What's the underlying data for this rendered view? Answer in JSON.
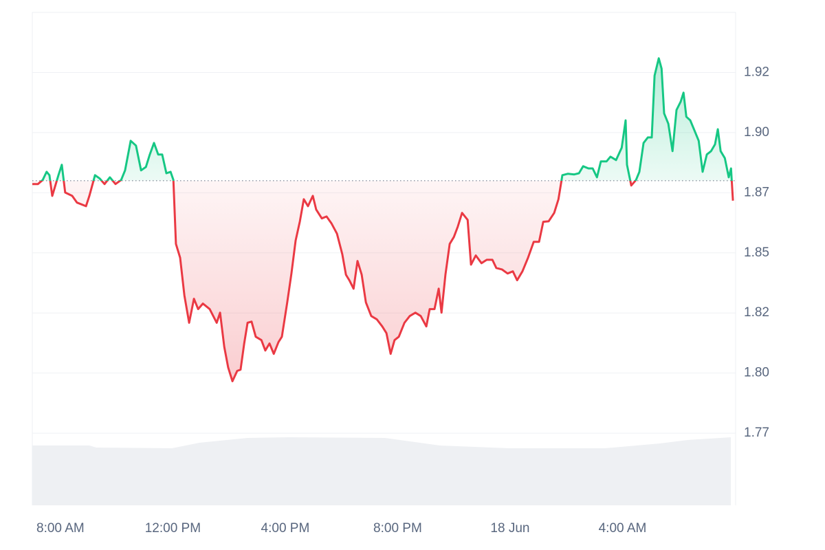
{
  "chart_data": {
    "type": "line",
    "up_color": "#16c784",
    "down_color": "#ea3943",
    "baseline": 1.88,
    "xlim": [
      7,
      32
    ],
    "xticks": [
      {
        "value": 8,
        "label": "8:00 AM"
      },
      {
        "value": 12,
        "label": "12:00 PM"
      },
      {
        "value": 16,
        "label": "4:00 PM"
      },
      {
        "value": 20,
        "label": "8:00 PM"
      },
      {
        "value": 24,
        "label": "18 Jun"
      },
      {
        "value": 28,
        "label": "4:00 AM"
      }
    ],
    "ylim": [
      1.745,
      1.95
    ],
    "yticks": [
      {
        "value": 1.925,
        "label": "1.92"
      },
      {
        "value": 1.9,
        "label": "1.90"
      },
      {
        "value": 1.875,
        "label": "1.87"
      },
      {
        "value": 1.85,
        "label": "1.85"
      },
      {
        "value": 1.825,
        "label": "1.82"
      },
      {
        "value": 1.8,
        "label": "1.80"
      },
      {
        "value": 1.775,
        "label": "1.77"
      }
    ],
    "grid": true,
    "x": [
      7.0,
      7.2,
      7.37,
      7.51,
      7.61,
      7.71,
      7.93,
      8.05,
      8.17,
      8.42,
      8.59,
      8.91,
      9.03,
      9.23,
      9.4,
      9.57,
      9.76,
      9.96,
      10.16,
      10.3,
      10.5,
      10.69,
      10.87,
      11.04,
      11.18,
      11.33,
      11.48,
      11.62,
      11.77,
      11.92,
      12.02,
      12.11,
      12.26,
      12.41,
      12.58,
      12.75,
      12.9,
      13.07,
      13.31,
      13.56,
      13.68,
      13.83,
      13.97,
      14.12,
      14.29,
      14.41,
      14.54,
      14.66,
      14.8,
      14.95,
      15.15,
      15.29,
      15.44,
      15.59,
      15.76,
      15.88,
      16.07,
      16.22,
      16.37,
      16.52,
      16.66,
      16.81,
      16.98,
      17.1,
      17.3,
      17.47,
      17.64,
      17.84,
      18.03,
      18.16,
      18.28,
      18.43,
      18.57,
      18.72,
      18.87,
      19.06,
      19.26,
      19.45,
      19.6,
      19.75,
      19.89,
      20.04,
      20.24,
      20.43,
      20.63,
      20.82,
      21.02,
      21.14,
      21.31,
      21.46,
      21.56,
      21.7,
      21.85,
      22.0,
      22.14,
      22.29,
      22.49,
      22.61,
      22.78,
      22.98,
      23.17,
      23.37,
      23.51,
      23.71,
      23.91,
      24.1,
      24.25,
      24.44,
      24.64,
      24.84,
      25.03,
      25.18,
      25.37,
      25.57,
      25.72,
      25.86,
      26.06,
      26.28,
      26.45,
      26.6,
      26.79,
      26.94,
      27.09,
      27.23,
      27.43,
      27.57,
      27.77,
      27.97,
      28.11,
      28.16,
      28.31,
      28.48,
      28.6,
      28.75,
      28.9,
      29.04,
      29.14,
      29.29,
      29.39,
      29.48,
      29.63,
      29.78,
      29.92,
      30.07,
      30.17,
      30.27,
      30.41,
      30.56,
      30.71,
      30.85,
      31.0,
      31.15,
      31.29,
      31.39,
      31.49,
      31.64,
      31.78,
      31.86,
      31.93
    ],
    "values": [
      1.8786,
      1.8786,
      1.8803,
      1.8837,
      1.8823,
      1.8737,
      1.8823,
      1.8866,
      1.8751,
      1.8737,
      1.8709,
      1.8694,
      1.8737,
      1.8823,
      1.8809,
      1.8786,
      1.8814,
      1.8786,
      1.8803,
      1.8843,
      1.8966,
      1.8946,
      1.8843,
      1.8857,
      1.8909,
      1.8957,
      1.8909,
      1.8909,
      1.8831,
      1.8837,
      1.8803,
      1.8537,
      1.848,
      1.8323,
      1.8209,
      1.8309,
      1.8266,
      1.8289,
      1.8266,
      1.8209,
      1.8251,
      1.8109,
      1.8023,
      1.7966,
      1.8009,
      1.8014,
      1.8123,
      1.8209,
      1.8214,
      1.8151,
      1.8137,
      1.8094,
      1.8123,
      1.808,
      1.8129,
      1.8151,
      1.8294,
      1.8414,
      1.8551,
      1.8631,
      1.8723,
      1.8694,
      1.8737,
      1.868,
      1.8643,
      1.8651,
      1.8623,
      1.858,
      1.8494,
      1.8409,
      1.8386,
      1.8351,
      1.8466,
      1.8409,
      1.8294,
      1.8237,
      1.8223,
      1.8194,
      1.8166,
      1.808,
      1.8137,
      1.8151,
      1.8209,
      1.8237,
      1.8251,
      1.8237,
      1.8194,
      1.8266,
      1.8266,
      1.8351,
      1.8251,
      1.8409,
      1.8537,
      1.8566,
      1.8609,
      1.8666,
      1.8637,
      1.8451,
      1.8489,
      1.8457,
      1.8471,
      1.8471,
      1.8437,
      1.8431,
      1.8414,
      1.8423,
      1.8386,
      1.8423,
      1.848,
      1.8546,
      1.8546,
      1.8629,
      1.8631,
      1.8666,
      1.8723,
      1.8823,
      1.8829,
      1.8826,
      1.8831,
      1.886,
      1.8851,
      1.8851,
      1.8814,
      1.888,
      1.888,
      1.89,
      1.8886,
      1.8937,
      1.9051,
      1.8866,
      1.878,
      1.8803,
      1.8837,
      1.8957,
      1.898,
      1.898,
      1.9237,
      1.9309,
      1.9266,
      1.908,
      1.9037,
      1.8923,
      1.9094,
      1.9129,
      1.9166,
      1.9066,
      1.9051,
      1.9009,
      1.8966,
      1.8837,
      1.8909,
      1.8923,
      1.8951,
      1.9014,
      1.8923,
      1.8894,
      1.8814,
      1.8851,
      1.8717
    ]
  }
}
